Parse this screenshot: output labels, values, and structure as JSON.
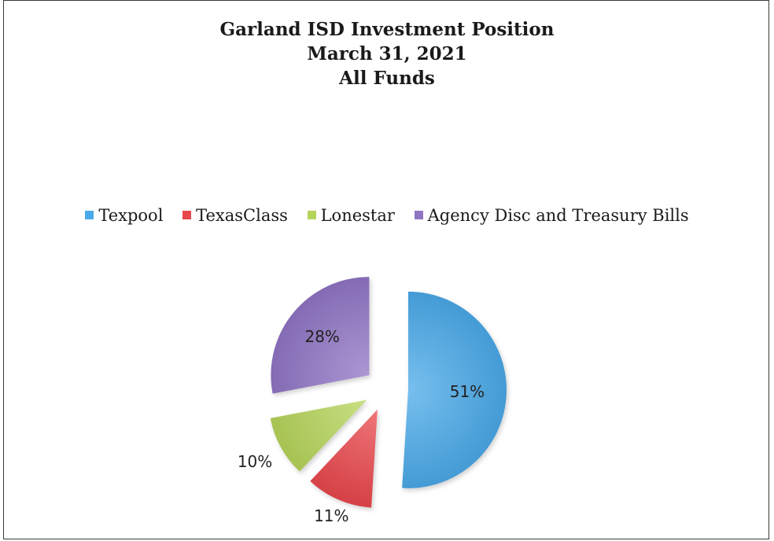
{
  "chart_data": {
    "type": "pie",
    "title": [
      "Garland ISD Investment Position",
      "March 31, 2021",
      "All Funds"
    ],
    "legend_position": "top",
    "exploded": true,
    "slices": [
      {
        "name": "Texpool",
        "value": 51,
        "label": "51%",
        "color": "#4aa9e8"
      },
      {
        "name": "TexasClass",
        "value": 11,
        "label": "11%",
        "color": "#e8474c"
      },
      {
        "name": "Lonestar",
        "value": 10,
        "label": "10%",
        "color": "#b6d45a"
      },
      {
        "name": "Agency Disc and Treasury Bills",
        "value": 28,
        "label": "28%",
        "color": "#8f74c4"
      }
    ]
  }
}
